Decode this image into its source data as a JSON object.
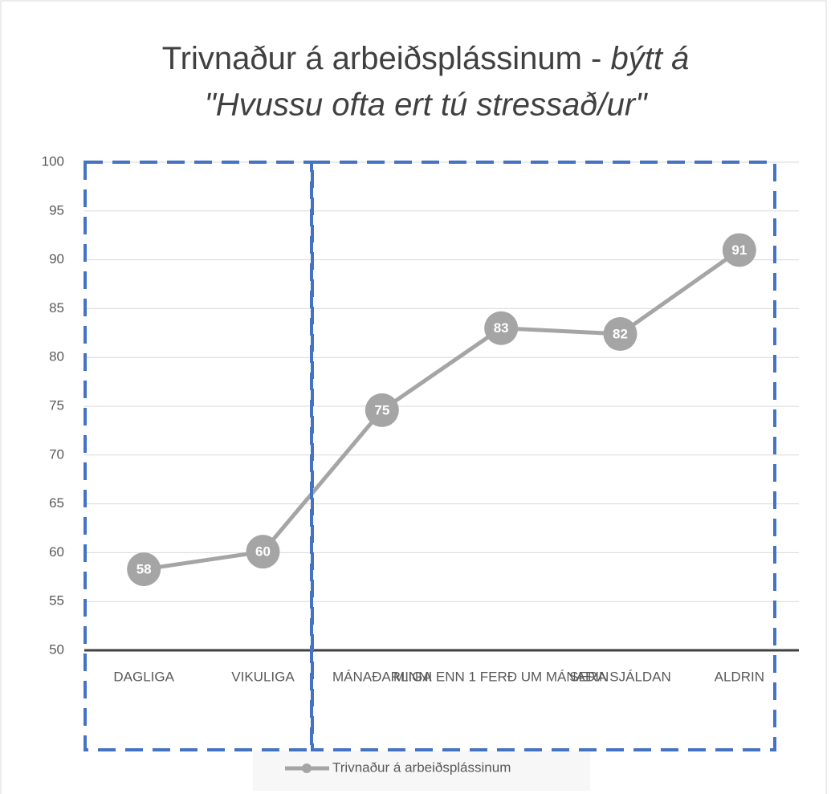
{
  "chart_data": {
    "type": "line",
    "title": "Trivnaður á arbeiðsplássinum - ",
    "title_italic": [
      "býtt á",
      "\"Hvussu ofta ert tú stressað/ur\""
    ],
    "categories": [
      "DAGLIGA",
      "VIKULIGA",
      "MÁNAÐARLIGA",
      "MINNI ENN 1 FERÐ UM MÁNAÐIN",
      "SERA SJÁLDAN",
      "ALDRIN"
    ],
    "series": [
      {
        "name": "Trivnaður á arbeiðsplássinum",
        "color": "#a5a5a5",
        "values": [
          58.3,
          60.1,
          74.6,
          83.0,
          82.4,
          91.0
        ],
        "value_labels": [
          "58",
          "60",
          "75",
          "83",
          "82",
          "91"
        ]
      }
    ],
    "ylim": [
      50,
      100
    ],
    "yticks": [
      50,
      55,
      60,
      65,
      70,
      75,
      80,
      85,
      90,
      95,
      100
    ],
    "grid": true,
    "legend": "bottom"
  }
}
